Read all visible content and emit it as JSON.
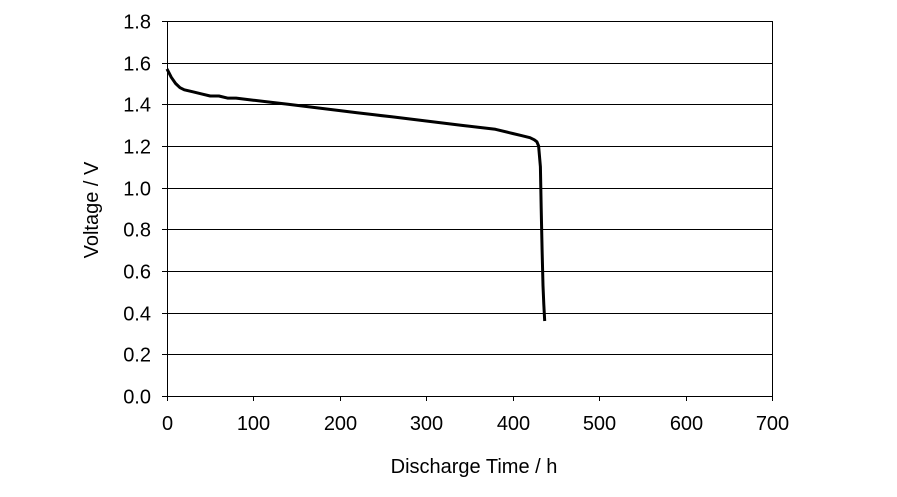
{
  "chart_data": {
    "type": "line",
    "title": "",
    "xlabel": "Discharge Time / h",
    "ylabel": "Voltage / V",
    "xlim": [
      0,
      700
    ],
    "ylim": [
      0.0,
      1.8
    ],
    "x_ticks": [
      0,
      100,
      200,
      300,
      400,
      500,
      600,
      700
    ],
    "y_ticks": [
      0.0,
      0.2,
      0.4,
      0.6,
      0.8,
      1.0,
      1.2,
      1.4,
      1.6,
      1.8
    ],
    "x_tick_labels": [
      "0",
      "100",
      "200",
      "300",
      "400",
      "500",
      "600",
      "700"
    ],
    "y_tick_labels": [
      "0.0",
      "0.2",
      "0.4",
      "0.6",
      "0.8",
      "1.0",
      "1.2",
      "1.4",
      "1.6",
      "1.8"
    ],
    "grid": "horizontal",
    "legend": "none",
    "colors": {
      "line": "#000000",
      "grid": "#000000",
      "axis": "#000000"
    },
    "series": [
      {
        "x": [
          0,
          5,
          10,
          15,
          20,
          30,
          40,
          50,
          60,
          70,
          80,
          100,
          120,
          140,
          160,
          180,
          200,
          220,
          240,
          260,
          280,
          300,
          320,
          340,
          360,
          380,
          400,
          410,
          420,
          425,
          428,
          430,
          432,
          433,
          434,
          435,
          436,
          437
        ],
        "y": [
          1.57,
          1.53,
          1.5,
          1.48,
          1.47,
          1.46,
          1.45,
          1.44,
          1.44,
          1.43,
          1.43,
          1.42,
          1.41,
          1.4,
          1.39,
          1.38,
          1.37,
          1.36,
          1.35,
          1.34,
          1.33,
          1.32,
          1.31,
          1.3,
          1.29,
          1.28,
          1.26,
          1.25,
          1.24,
          1.23,
          1.22,
          1.2,
          1.1,
          0.9,
          0.7,
          0.53,
          0.44,
          0.36
        ]
      }
    ]
  }
}
